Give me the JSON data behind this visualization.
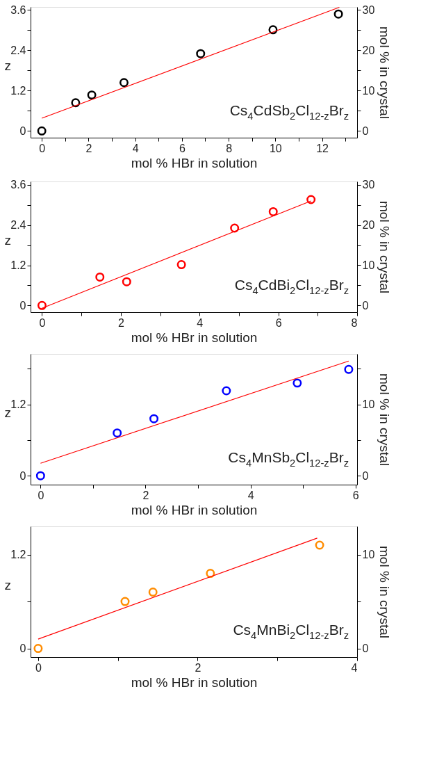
{
  "chart_data": [
    {
      "type": "scatter",
      "xlabel": "mol % HBr in solution",
      "ylabel": "z",
      "y2label": "mol % in crystal",
      "grid": false,
      "xlim": [
        -0.48,
        13.5
      ],
      "xticks": [
        0,
        {
          "value": 1,
          "label": null
        },
        2,
        {
          "value": 3,
          "label": null
        },
        4,
        {
          "value": 5,
          "label": null
        },
        6,
        {
          "value": 7,
          "label": null
        },
        8,
        {
          "value": 9,
          "label": null
        },
        10,
        {
          "value": 11,
          "label": null
        },
        12,
        {
          "value": 13,
          "label": null
        }
      ],
      "ylim": [
        -0.2,
        3.69
      ],
      "yticks": [
        0,
        {
          "value": 0.6,
          "label": null
        },
        1.2,
        {
          "value": 1.8,
          "label": null
        },
        2.4,
        {
          "value": 3.0,
          "label": null
        },
        3.6
      ],
      "y2lim": [
        -1.67,
        30.75
      ],
      "y2ticks": [
        0,
        {
          "value": 5,
          "label": null
        },
        10,
        {
          "value": 15,
          "label": null
        },
        20,
        {
          "value": 25,
          "label": null
        },
        30
      ],
      "annotations": [
        "Cs$_{4}$CdSb$_{2}$Cl$_{12-z}$Br$_{z}$"
      ],
      "series": [
        {
          "marker": "circle",
          "color": "#000000",
          "x": [
            0,
            1.45,
            2.14,
            3.52,
            6.8,
            9.9,
            12.7
          ],
          "values": [
            0,
            0.84,
            1.07,
            1.44,
            2.3,
            3.01,
            3.48
          ]
        },
        {
          "type": "line",
          "line_style": "solid",
          "color": "#ff0000",
          "x": [
            0,
            12.74
          ],
          "values": [
            0.38,
            3.68
          ]
        }
      ]
    },
    {
      "type": "scatter",
      "xlabel": "mol % HBr in solution",
      "ylabel": "z",
      "y2label": "mol % in crystal",
      "grid": false,
      "xlim": [
        -0.29,
        8.0
      ],
      "xticks": [
        0,
        {
          "value": 1,
          "label": null
        },
        2,
        {
          "value": 3,
          "label": null
        },
        4,
        {
          "value": 5,
          "label": null
        },
        6,
        {
          "value": 7,
          "label": null
        },
        8
      ],
      "ylim": [
        -0.2,
        3.7
      ],
      "yticks": [
        0,
        {
          "value": 0.6,
          "label": null
        },
        1.2,
        {
          "value": 1.8,
          "label": null
        },
        2.4,
        {
          "value": 3.0,
          "label": null
        },
        3.6
      ],
      "y2lim": [
        -1.67,
        30.83
      ],
      "y2ticks": [
        0,
        {
          "value": 5,
          "label": null
        },
        10,
        {
          "value": 15,
          "label": null
        },
        20,
        {
          "value": 25,
          "label": null
        },
        30
      ],
      "annotations": [
        "Cs$_{4}$CdBi$_{2}$Cl$_{12-z}$Br$_{z}$"
      ],
      "series": [
        {
          "marker": "circle",
          "color": "#ff0000",
          "x": [
            0,
            1.47,
            2.15,
            3.54,
            4.89,
            5.87,
            6.83
          ],
          "values": [
            0,
            0.85,
            0.71,
            1.22,
            2.31,
            2.8,
            3.16
          ]
        },
        {
          "type": "line",
          "line_style": "solid",
          "color": "#ff0000",
          "x": [
            0,
            6.83
          ],
          "values": [
            -0.08,
            3.12
          ]
        }
      ]
    },
    {
      "type": "scatter",
      "xlabel": "mol % HBr in solution",
      "ylabel": "z",
      "y2label": "mol % in crystal",
      "grid": false,
      "xlim": [
        -0.19,
        6.03
      ],
      "xticks": [
        0,
        {
          "value": 1,
          "label": null
        },
        2,
        {
          "value": 3,
          "label": null
        },
        4,
        {
          "value": 5,
          "label": null
        },
        6
      ],
      "ylim": [
        -0.15,
        2.05
      ],
      "yticks": [
        0,
        {
          "value": 0.6,
          "label": null
        },
        1.2,
        {
          "value": 1.8,
          "label": null
        }
      ],
      "y2lim": [
        -1.25,
        17.08
      ],
      "y2ticks": [
        0,
        {
          "value": 5,
          "label": null
        },
        10,
        {
          "value": 15,
          "label": null
        }
      ],
      "annotations": [
        "Cs$_{4}$MnSb$_{2}$Cl$_{12-z}$Br$_{z}$"
      ],
      "series": [
        {
          "marker": "circle",
          "color": "#0000ff",
          "x": [
            0,
            1.46,
            2.16,
            3.54,
            4.89,
            5.87
          ],
          "values": [
            0,
            0.72,
            0.96,
            1.43,
            1.56,
            1.79
          ]
        },
        {
          "type": "line",
          "line_style": "solid",
          "color": "#ff0000",
          "x": [
            0,
            5.87
          ],
          "values": [
            0.21,
            1.93
          ]
        }
      ]
    },
    {
      "type": "scatter",
      "xlabel": "mol % HBr in solution",
      "ylabel": "z",
      "y2label": "mol % in crystal",
      "grid": false,
      "xlim": [
        -0.095,
        4.0
      ],
      "xticks": [
        0,
        {
          "value": 1,
          "label": null
        },
        2,
        {
          "value": 3,
          "label": null
        },
        4
      ],
      "ylim": [
        -0.11,
        1.56
      ],
      "yticks": [
        0,
        {
          "value": 0.6,
          "label": null
        },
        1.2
      ],
      "y2lim": [
        -0.92,
        13.0
      ],
      "y2ticks": [
        0,
        {
          "value": 5,
          "label": null
        },
        10
      ],
      "annotations": [
        "Cs$_{4}$MnBi$_{2}$Cl$_{12-z}$Br$_{z}$"
      ],
      "series": [
        {
          "marker": "circle",
          "color": "#ff8c00",
          "x": [
            0,
            1.09,
            1.44,
            2.16,
            3.53
          ],
          "values": [
            0,
            0.6,
            0.72,
            0.96,
            1.32
          ]
        },
        {
          "type": "line",
          "line_style": "solid",
          "color": "#ff0000",
          "x": [
            0,
            3.5
          ],
          "values": [
            0.12,
            1.41
          ]
        }
      ]
    }
  ]
}
